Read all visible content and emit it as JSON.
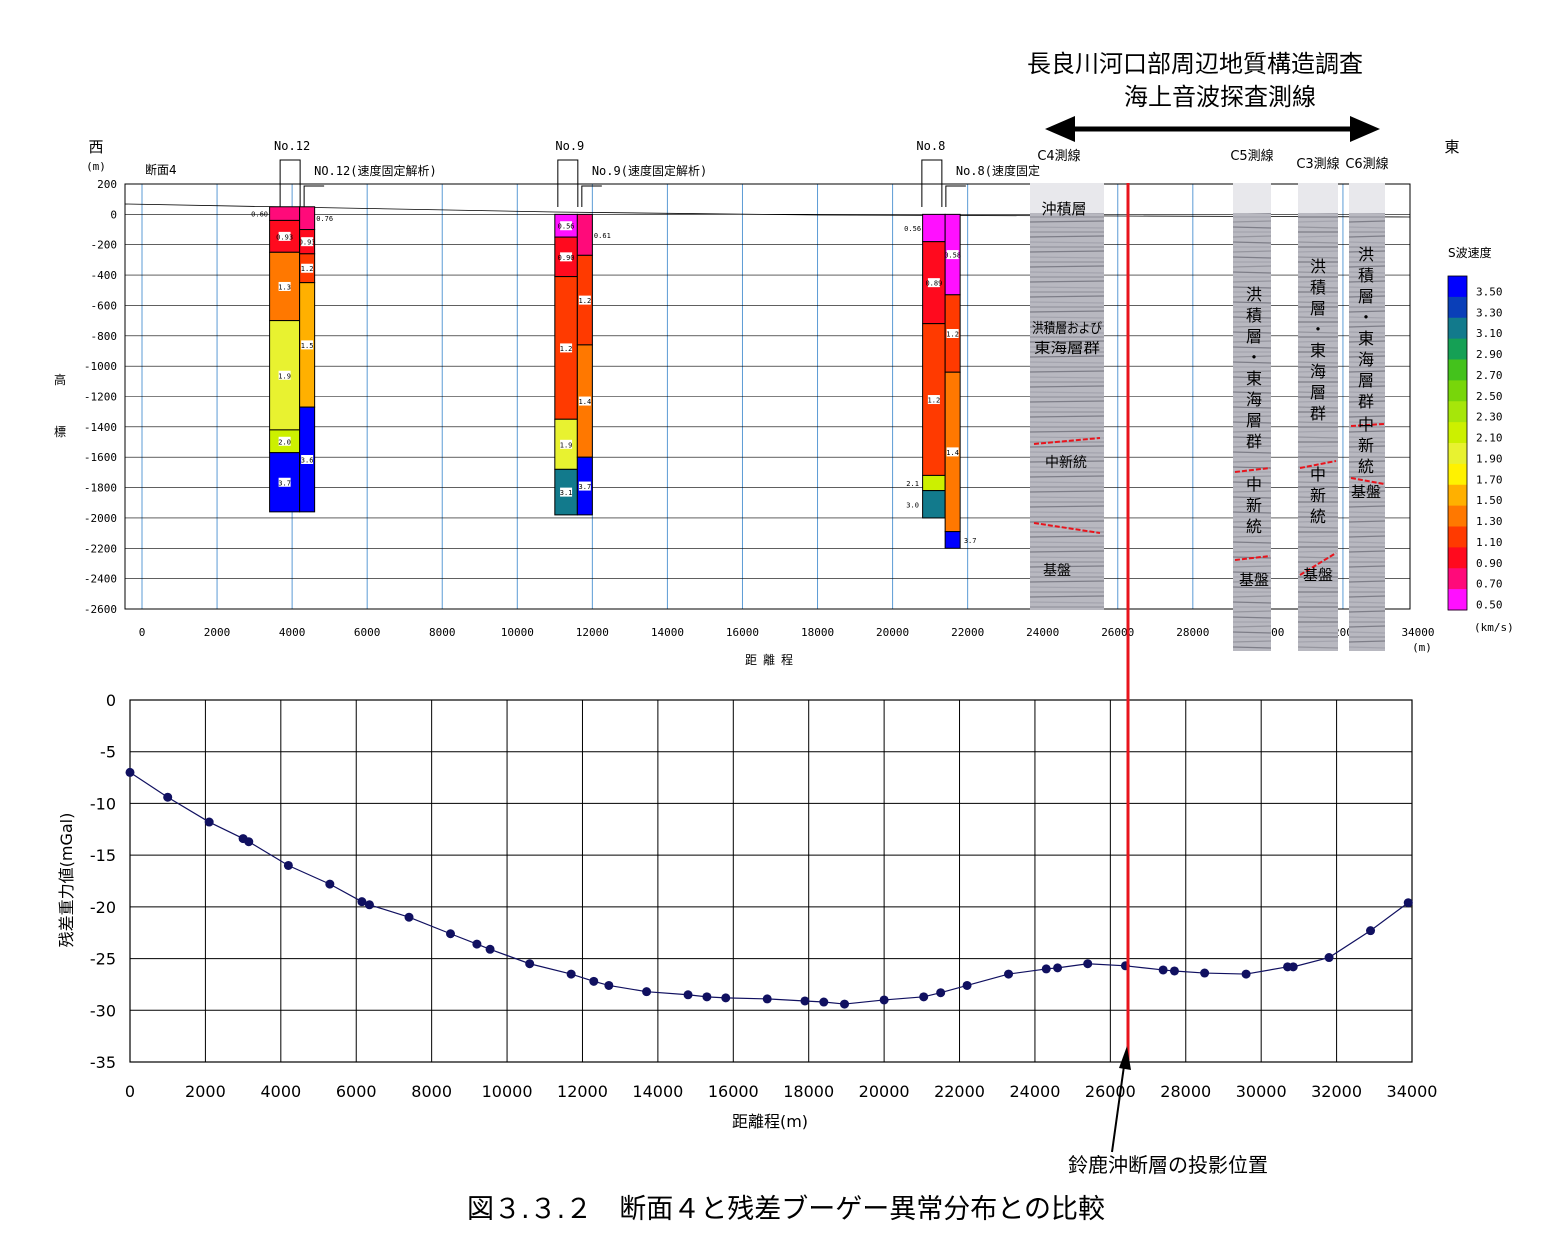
{
  "survey": {
    "title_line1": "長良川河口部周辺地質構造調査",
    "title_line2": "海上音波探査測線",
    "west": "西",
    "east": "東",
    "section": "断面4"
  },
  "boreholes": [
    {
      "id": "No.12",
      "label2": "NO.12(速度固定解析)"
    },
    {
      "id": "No.9",
      "label2": "No.9(速度固定解析)"
    },
    {
      "id": "No.8",
      "label2": "No.8(速度固定"
    }
  ],
  "seismic_lines": [
    {
      "name": "C4測線",
      "labels": [
        "沖積層",
        "洪積層および東海層群",
        "中新統",
        "基盤"
      ]
    },
    {
      "name": "C5測線",
      "labels": [
        "洪積層・東海層群",
        "中新統",
        "基盤"
      ]
    },
    {
      "name": "C3測線",
      "labels": [
        "洪積層・東海層群",
        "中新統",
        "基盤"
      ]
    },
    {
      "name": "C6測線",
      "labels": [
        "洪積層・東海層群",
        "中新統",
        "基盤"
      ]
    }
  ],
  "legend": {
    "title": "S波速度",
    "unit": "(km/s)",
    "entries": [
      {
        "value": "3.50",
        "color": "#0000ff"
      },
      {
        "value": "3.30",
        "color": "#0a3fb8"
      },
      {
        "value": "3.10",
        "color": "#127a8c"
      },
      {
        "value": "2.90",
        "color": "#15a055"
      },
      {
        "value": "2.70",
        "color": "#44c21c"
      },
      {
        "value": "2.50",
        "color": "#78d60a"
      },
      {
        "value": "2.30",
        "color": "#a6e60a"
      },
      {
        "value": "2.10",
        "color": "#ccf000"
      },
      {
        "value": "1.90",
        "color": "#e8f230"
      },
      {
        "value": "1.70",
        "color": "#fff200"
      },
      {
        "value": "1.50",
        "color": "#ffb000"
      },
      {
        "value": "1.30",
        "color": "#ff7800"
      },
      {
        "value": "1.10",
        "color": "#ff3a00"
      },
      {
        "value": "0.90",
        "color": "#ff0a1e"
      },
      {
        "value": "0.70",
        "color": "#ff0a7a"
      },
      {
        "value": "0.50",
        "color": "#ff10ff"
      }
    ]
  },
  "annotation": "鈴鹿沖断層の投影位置",
  "caption": "図３.３.２　断面４と残差ブーゲー異常分布との比較",
  "chart_data": [
    {
      "type": "table",
      "ylabel": "標高",
      "yunit": "(m)",
      "xlabel": "距離程",
      "xunit": "(m)",
      "xlim": [
        0,
        34000
      ],
      "ylim": [
        -2600,
        200
      ],
      "xticks": [
        "0",
        "2000",
        "4000",
        "6000",
        "8000",
        "10000",
        "12000",
        "14000",
        "16000",
        "18000",
        "20000",
        "22000",
        "24000",
        "26000",
        "28000",
        "30000",
        "32000",
        "34000"
      ],
      "yticks": [
        "200",
        "0",
        "-200",
        "-400",
        "-600",
        "-800",
        "-1000",
        "-1200",
        "-1400",
        "-1600",
        "-1800",
        "-2000",
        "-2200",
        "-2400",
        "-2600"
      ],
      "columns": [
        {
          "x0": 3400,
          "x1": 4200,
          "layers": [
            {
              "top": 50,
              "bottom": -40,
              "vs": "0.60"
            },
            {
              "top": -40,
              "bottom": -250,
              "vs": "0.93"
            },
            {
              "top": -250,
              "bottom": -700,
              "vs": "1.3"
            },
            {
              "top": -700,
              "bottom": -1420,
              "vs": "1.9"
            },
            {
              "top": -1420,
              "bottom": -1570,
              "vs": "2.0"
            },
            {
              "top": -1570,
              "bottom": -1960,
              "vs": "3.7"
            }
          ]
        },
        {
          "x0": 4200,
          "x1": 4600,
          "layers": [
            {
              "top": 50,
              "bottom": -100,
              "vs": "0.76"
            },
            {
              "top": -100,
              "bottom": -260,
              "vs": "0.93"
            },
            {
              "top": -260,
              "bottom": -450,
              "vs": "1.2"
            },
            {
              "top": -450,
              "bottom": -1270,
              "vs": "1.5"
            },
            {
              "top": -1270,
              "bottom": -1960,
              "vs": "3.6"
            }
          ]
        },
        {
          "x0": 11000,
          "x1": 11600,
          "layers": [
            {
              "top": 0,
              "bottom": -150,
              "vs": "0.56"
            },
            {
              "top": -150,
              "bottom": -410,
              "vs": "0.90"
            },
            {
              "top": -410,
              "bottom": -1350,
              "vs": "1.2"
            },
            {
              "top": -1350,
              "bottom": -1680,
              "vs": "1.9"
            },
            {
              "top": -1680,
              "bottom": -1980,
              "vs": "3.1"
            }
          ]
        },
        {
          "x0": 11600,
          "x1": 12000,
          "layers": [
            {
              "top": 0,
              "bottom": -270,
              "vs": "0.61"
            },
            {
              "top": -270,
              "bottom": -860,
              "vs": "1.2"
            },
            {
              "top": -860,
              "bottom": -1600,
              "vs": "1.4"
            },
            {
              "top": -1600,
              "bottom": -1980,
              "vs": "3.7"
            }
          ]
        },
        {
          "x0": 20800,
          "x1": 21400,
          "layers": [
            {
              "top": 0,
              "bottom": -180,
              "vs": "0.56"
            },
            {
              "top": -180,
              "bottom": -720,
              "vs": "0.89"
            },
            {
              "top": -720,
              "bottom": -1720,
              "vs": "1.2"
            },
            {
              "top": -1720,
              "bottom": -1820,
              "vs": "2.1"
            },
            {
              "top": -1820,
              "bottom": -2000,
              "vs": "3.0"
            }
          ]
        },
        {
          "x0": 21400,
          "x1": 21800,
          "layers": [
            {
              "top": 0,
              "bottom": -530,
              "vs": "0.58"
            },
            {
              "top": -530,
              "bottom": -1040,
              "vs": "1.2"
            },
            {
              "top": -1040,
              "bottom": -2090,
              "vs": "1.4"
            },
            {
              "top": -2090,
              "bottom": -2200,
              "vs": "3.7"
            }
          ]
        }
      ]
    },
    {
      "type": "line",
      "xlabel": "距離程(m)",
      "ylabel": "残差重力値(mGal)",
      "xlim": [
        0,
        34000
      ],
      "ylim": [
        -35,
        0
      ],
      "xticks": [
        "0",
        "2000",
        "4000",
        "6000",
        "8000",
        "10000",
        "12000",
        "14000",
        "16000",
        "18000",
        "20000",
        "22000",
        "24000",
        "26000",
        "28000",
        "30000",
        "32000",
        "34000"
      ],
      "yticks": [
        "0",
        "-5",
        "-10",
        "-15",
        "-20",
        "-25",
        "-30",
        "-35"
      ],
      "grid": true,
      "series": [
        {
          "color": "#101060",
          "points": [
            [
              0,
              -7.0
            ],
            [
              1000,
              -9.4
            ],
            [
              2100,
              -11.8
            ],
            [
              3000,
              -13.4
            ],
            [
              3150,
              -13.7
            ],
            [
              4200,
              -16.0
            ],
            [
              5300,
              -17.8
            ],
            [
              6150,
              -19.5
            ],
            [
              6350,
              -19.8
            ],
            [
              7400,
              -21.0
            ],
            [
              8500,
              -22.6
            ],
            [
              9200,
              -23.6
            ],
            [
              9550,
              -24.1
            ],
            [
              10600,
              -25.5
            ],
            [
              11700,
              -26.5
            ],
            [
              12300,
              -27.2
            ],
            [
              12700,
              -27.6
            ],
            [
              13700,
              -28.2
            ],
            [
              14800,
              -28.5
            ],
            [
              15300,
              -28.7
            ],
            [
              15800,
              -28.8
            ],
            [
              16900,
              -28.9
            ],
            [
              17900,
              -29.1
            ],
            [
              18400,
              -29.2
            ],
            [
              18950,
              -29.4
            ],
            [
              20000,
              -29.0
            ],
            [
              21050,
              -28.7
            ],
            [
              21500,
              -28.3
            ],
            [
              22200,
              -27.6
            ],
            [
              23300,
              -26.5
            ],
            [
              24300,
              -26.0
            ],
            [
              24600,
              -25.9
            ],
            [
              25400,
              -25.5
            ],
            [
              26400,
              -25.7
            ],
            [
              27400,
              -26.1
            ],
            [
              27700,
              -26.2
            ],
            [
              28500,
              -26.4
            ],
            [
              29600,
              -26.5
            ],
            [
              30700,
              -25.8
            ],
            [
              30850,
              -25.8
            ],
            [
              31800,
              -24.9
            ],
            [
              32900,
              -22.3
            ],
            [
              33900,
              -19.6
            ]
          ]
        }
      ]
    }
  ]
}
